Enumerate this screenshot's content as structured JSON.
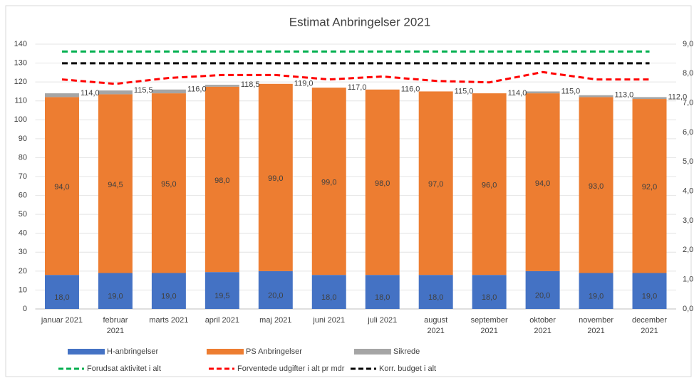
{
  "chart_data": {
    "type": "bar",
    "stacked": true,
    "title": "Estimat Anbringelser 2021",
    "categories": [
      "januar 2021",
      "februar 2021",
      "marts 2021",
      "april 2021",
      "maj 2021",
      "juni 2021",
      "juli 2021",
      "august 2021",
      "september 2021",
      "oktober 2021",
      "november 2021",
      "december 2021"
    ],
    "series": [
      {
        "name": "H-anbringelser",
        "type": "bar",
        "color": "#4472c4",
        "values": [
          18,
          19,
          19,
          19.5,
          20,
          18,
          18,
          18,
          18,
          20,
          19,
          19
        ],
        "value_labels": [
          "18,0",
          "19,0",
          "19,0",
          "19,5",
          "20,0",
          "18,0",
          "18,0",
          "18,0",
          "18,0",
          "20,0",
          "19,0",
          "19,0"
        ]
      },
      {
        "name": "PS Anbringelser",
        "type": "bar",
        "color": "#ed7d31",
        "values": [
          94,
          94.5,
          95,
          98,
          99,
          99,
          98,
          97,
          96,
          94,
          93,
          92
        ],
        "value_labels": [
          "94,0",
          "94,5",
          "95,0",
          "98,0",
          "99,0",
          "99,0",
          "98,0",
          "97,0",
          "96,0",
          "94,0",
          "93,0",
          "92,0"
        ]
      },
      {
        "name": "Sikrede",
        "type": "bar",
        "color": "#a5a5a5",
        "values": [
          2,
          2,
          2,
          1,
          0,
          0,
          0,
          0,
          0,
          1,
          1,
          1
        ]
      },
      {
        "name": "Forudsat aktivitet i alt",
        "type": "line",
        "axis": "y2",
        "dashed": true,
        "color": "#00b050",
        "values": [
          8.75,
          8.75,
          8.75,
          8.75,
          8.75,
          8.75,
          8.75,
          8.75,
          8.75,
          8.75,
          8.75,
          8.75
        ]
      },
      {
        "name": "Forventede udgifter i alt pr mdr",
        "type": "line",
        "axis": "y2",
        "dashed": true,
        "color": "#ff0000",
        "values": [
          7.8,
          7.65,
          7.85,
          7.95,
          7.95,
          7.8,
          7.9,
          7.75,
          7.7,
          8.05,
          7.8,
          7.8
        ]
      },
      {
        "name": "Korr. budget i alt",
        "type": "line",
        "axis": "y2",
        "dashed": true,
        "color": "#000000",
        "values": [
          8.35,
          8.35,
          8.35,
          8.35,
          8.35,
          8.35,
          8.35,
          8.35,
          8.35,
          8.35,
          8.35,
          8.35
        ]
      }
    ],
    "totals": {
      "values": [
        114,
        115.5,
        116,
        118.5,
        119,
        117,
        116,
        115,
        114,
        115,
        113,
        112
      ],
      "value_labels": [
        "114,0",
        "115,5",
        "116,0",
        "118,5",
        "119,0",
        "117,0",
        "116,0",
        "115,0",
        "114,0",
        "115,0",
        "113,0",
        "112,0"
      ]
    },
    "ylim": [
      0,
      140
    ],
    "yticks": [
      0,
      10,
      20,
      30,
      40,
      50,
      60,
      70,
      80,
      90,
      100,
      110,
      120,
      130,
      140
    ],
    "y2lim": [
      0,
      9
    ],
    "y2ticks": [
      {
        "value": 0,
        "label": "0,0"
      },
      {
        "value": 1,
        "label": "1,0"
      },
      {
        "value": 2,
        "label": "2,0"
      },
      {
        "value": 3,
        "label": "3,0"
      },
      {
        "value": 4,
        "label": "4,0"
      },
      {
        "value": 5,
        "label": "5,0"
      },
      {
        "value": 6,
        "label": "6,0"
      },
      {
        "value": 7,
        "label": "7,0"
      },
      {
        "value": 8,
        "label": "8,0"
      },
      {
        "value": 9,
        "label": "9,0"
      }
    ],
    "grid": true
  }
}
